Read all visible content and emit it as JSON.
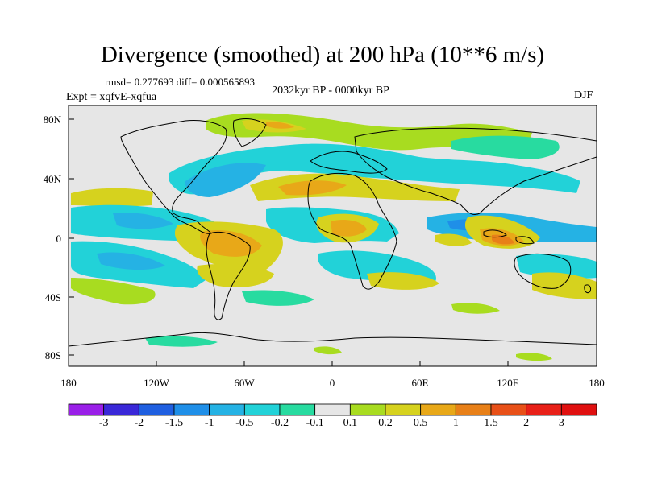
{
  "title": "Divergence (smoothed) at 200 hPa (10**6 m/s)",
  "stats": "rmsd= 0.277693 diff= 0.000565893",
  "period": "2032kyr BP - 0000kyr BP",
  "experiment": "Expt = xqfvE-xqfua",
  "season": "DJF",
  "lat_labels": [
    "80N",
    "40N",
    "0",
    "40S",
    "80S"
  ],
  "lon_labels": [
    "180",
    "120W",
    "60W",
    "0",
    "60E",
    "120E",
    "180"
  ],
  "colorbar": {
    "labels": [
      "-3",
      "-2",
      "-1.5",
      "-1",
      "-0.5",
      "-0.2",
      "-0.1",
      "0.1",
      "0.2",
      "0.5",
      "1",
      "1.5",
      "2",
      "3"
    ],
    "colors": [
      "#9a1fe8",
      "#3a28d8",
      "#1f5fe0",
      "#1f8fe8",
      "#25b2e4",
      "#22d2d8",
      "#28dba0",
      "#e6e6e6",
      "#a8dc20",
      "#d6d21e",
      "#e8a818",
      "#e88018",
      "#e85018",
      "#e82018",
      "#e01010"
    ]
  },
  "palette": {
    "neutral": "#e6e6e6",
    "weak_neg": "#28dba0",
    "mod_neg": "#22d2d8",
    "neg": "#25b2e4",
    "strong_neg": "#1f8fe8",
    "weak_pos": "#a8dc20",
    "mod_pos": "#d6d21e",
    "pos": "#e8a818",
    "strong_pos": "#e88018"
  }
}
